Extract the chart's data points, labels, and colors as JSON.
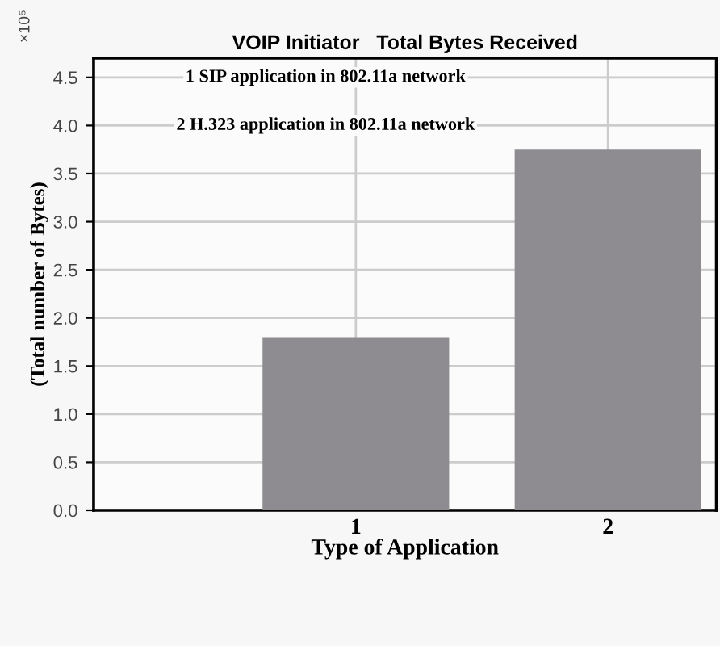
{
  "chart_data": {
    "type": "bar",
    "title": "VOIP Initiator   Total Bytes Received",
    "xlabel": "Type of Application",
    "ylabel": "(Total number of Bytes)",
    "categories": [
      "1",
      "2"
    ],
    "values": [
      1.8,
      3.75
    ],
    "color": "#8e8c90",
    "ylim": [
      0,
      4.7
    ],
    "yticks": [
      {
        "value": 0,
        "label": "0.0"
      },
      0.5,
      {
        "value": 1,
        "label": "1.0"
      },
      1.5,
      {
        "value": 2,
        "label": "2.0"
      },
      2.5,
      {
        "value": 3,
        "label": "3.0"
      },
      3.5,
      {
        "value": 4,
        "label": "4.0"
      },
      4.5
    ],
    "grid": true,
    "annotations": [
      "×10⁵",
      "1 SIP application in 802.11a network",
      "2 H.323 application in 802.11a network"
    ]
  }
}
